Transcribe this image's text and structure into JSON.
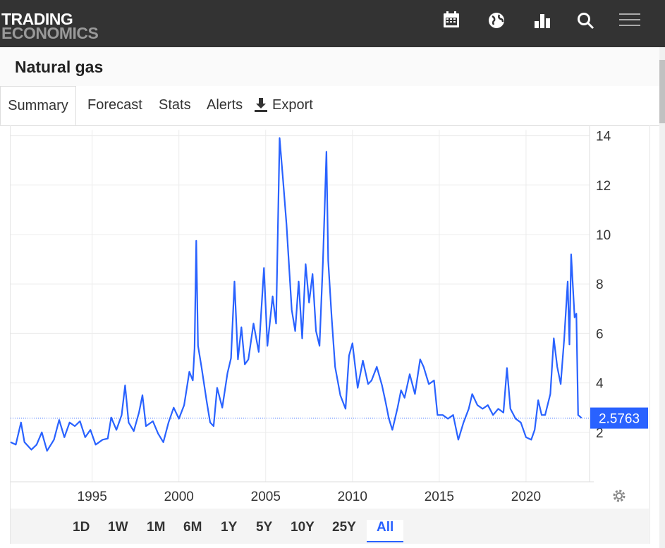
{
  "header": {
    "logo_top": "TRADING",
    "logo_bottom": "ECONOMICS"
  },
  "page_title": "Natural gas",
  "tabs": [
    "Summary",
    "Forecast",
    "Stats",
    "Alerts",
    "Export"
  ],
  "ranges": [
    "1D",
    "1W",
    "1M",
    "6M",
    "1Y",
    "5Y",
    "10Y",
    "25Y",
    "All"
  ],
  "chart_data": {
    "type": "line",
    "x": [
      1990.3,
      1990.6,
      1990.9,
      1991.1,
      1991.5,
      1991.8,
      1992.1,
      1992.4,
      1992.8,
      1993.1,
      1993.4,
      1993.7,
      1994.0,
      1994.3,
      1994.6,
      1994.9,
      1995.2,
      1995.6,
      1995.9,
      1996.1,
      1996.4,
      1996.7,
      1996.9,
      1997.1,
      1997.4,
      1997.7,
      1997.9,
      1998.1,
      1998.5,
      1998.8,
      1999.1,
      1999.4,
      1999.7,
      2000.0,
      2000.3,
      2000.6,
      2000.8,
      2000.9,
      2001.0,
      2001.1,
      2001.3,
      2001.6,
      2001.8,
      2002.0,
      2002.2,
      2002.5,
      2002.8,
      2003.0,
      2003.2,
      2003.4,
      2003.6,
      2003.8,
      2004.0,
      2004.3,
      2004.6,
      2004.9,
      2005.1,
      2005.4,
      2005.6,
      2005.8,
      2006.0,
      2006.2,
      2006.5,
      2006.7,
      2006.9,
      2007.1,
      2007.3,
      2007.5,
      2007.7,
      2007.9,
      2008.1,
      2008.3,
      2008.5,
      2008.6,
      2008.8,
      2009.0,
      2009.3,
      2009.6,
      2009.8,
      2010.0,
      2010.3,
      2010.6,
      2010.9,
      2011.1,
      2011.4,
      2011.7,
      2011.9,
      2012.1,
      2012.3,
      2012.6,
      2012.8,
      2013.0,
      2013.3,
      2013.6,
      2013.9,
      2014.1,
      2014.4,
      2014.7,
      2014.9,
      2015.2,
      2015.5,
      2015.8,
      2016.1,
      2016.4,
      2016.7,
      2016.9,
      2017.2,
      2017.5,
      2017.8,
      2018.1,
      2018.4,
      2018.7,
      2018.9,
      2019.1,
      2019.4,
      2019.7,
      2020.0,
      2020.3,
      2020.5,
      2020.7,
      2020.9,
      2021.1,
      2021.4,
      2021.6,
      2021.8,
      2022.0,
      2022.2,
      2022.4,
      2022.5,
      2022.6,
      2022.8,
      2022.9,
      2023.0,
      2023.2
    ],
    "series": [
      {
        "name": "Natural gas",
        "color": "#2962ff",
        "values": [
          1.6,
          1.5,
          2.4,
          1.6,
          1.3,
          1.5,
          2.0,
          1.25,
          1.7,
          2.5,
          1.8,
          2.4,
          2.25,
          2.45,
          1.8,
          2.1,
          1.5,
          1.7,
          1.75,
          2.6,
          2.1,
          2.7,
          3.9,
          2.4,
          2.05,
          2.8,
          3.5,
          2.25,
          2.45,
          1.95,
          1.6,
          2.4,
          3.0,
          2.55,
          3.1,
          4.45,
          4.1,
          5.4,
          9.75,
          5.5,
          4.65,
          3.25,
          2.4,
          2.25,
          3.8,
          3.0,
          4.4,
          5.0,
          8.1,
          4.95,
          6.25,
          4.75,
          4.95,
          6.4,
          5.25,
          8.65,
          5.5,
          7.5,
          6.4,
          13.9,
          12.2,
          10.4,
          6.95,
          6.1,
          8.1,
          5.8,
          8.8,
          7.25,
          8.4,
          6.1,
          5.5,
          8.95,
          13.35,
          8.95,
          6.65,
          4.65,
          3.5,
          2.95,
          5.1,
          5.6,
          3.8,
          4.9,
          3.95,
          4.1,
          4.65,
          3.9,
          3.25,
          2.55,
          2.1,
          3.0,
          3.7,
          3.4,
          4.35,
          3.55,
          4.95,
          4.65,
          3.95,
          4.1,
          2.7,
          2.7,
          2.55,
          2.7,
          1.7,
          2.4,
          2.95,
          3.55,
          3.1,
          2.95,
          3.1,
          2.7,
          2.95,
          2.8,
          4.6,
          2.95,
          2.55,
          2.4,
          1.8,
          1.7,
          2.1,
          3.3,
          2.7,
          2.7,
          3.55,
          5.8,
          4.65,
          3.95,
          5.8,
          8.1,
          5.55,
          9.2,
          6.65,
          6.8,
          2.7,
          2.58
        ]
      }
    ],
    "last_value": 2.5763,
    "xlim": [
      1990.3,
      2023.66
    ],
    "xticks": [
      1995,
      2000,
      2005,
      2010,
      2015,
      2020
    ],
    "ylim": [
      0,
      14.23
    ],
    "yticks": [
      2,
      4,
      6,
      8,
      10,
      12,
      14
    ],
    "grid": true
  }
}
